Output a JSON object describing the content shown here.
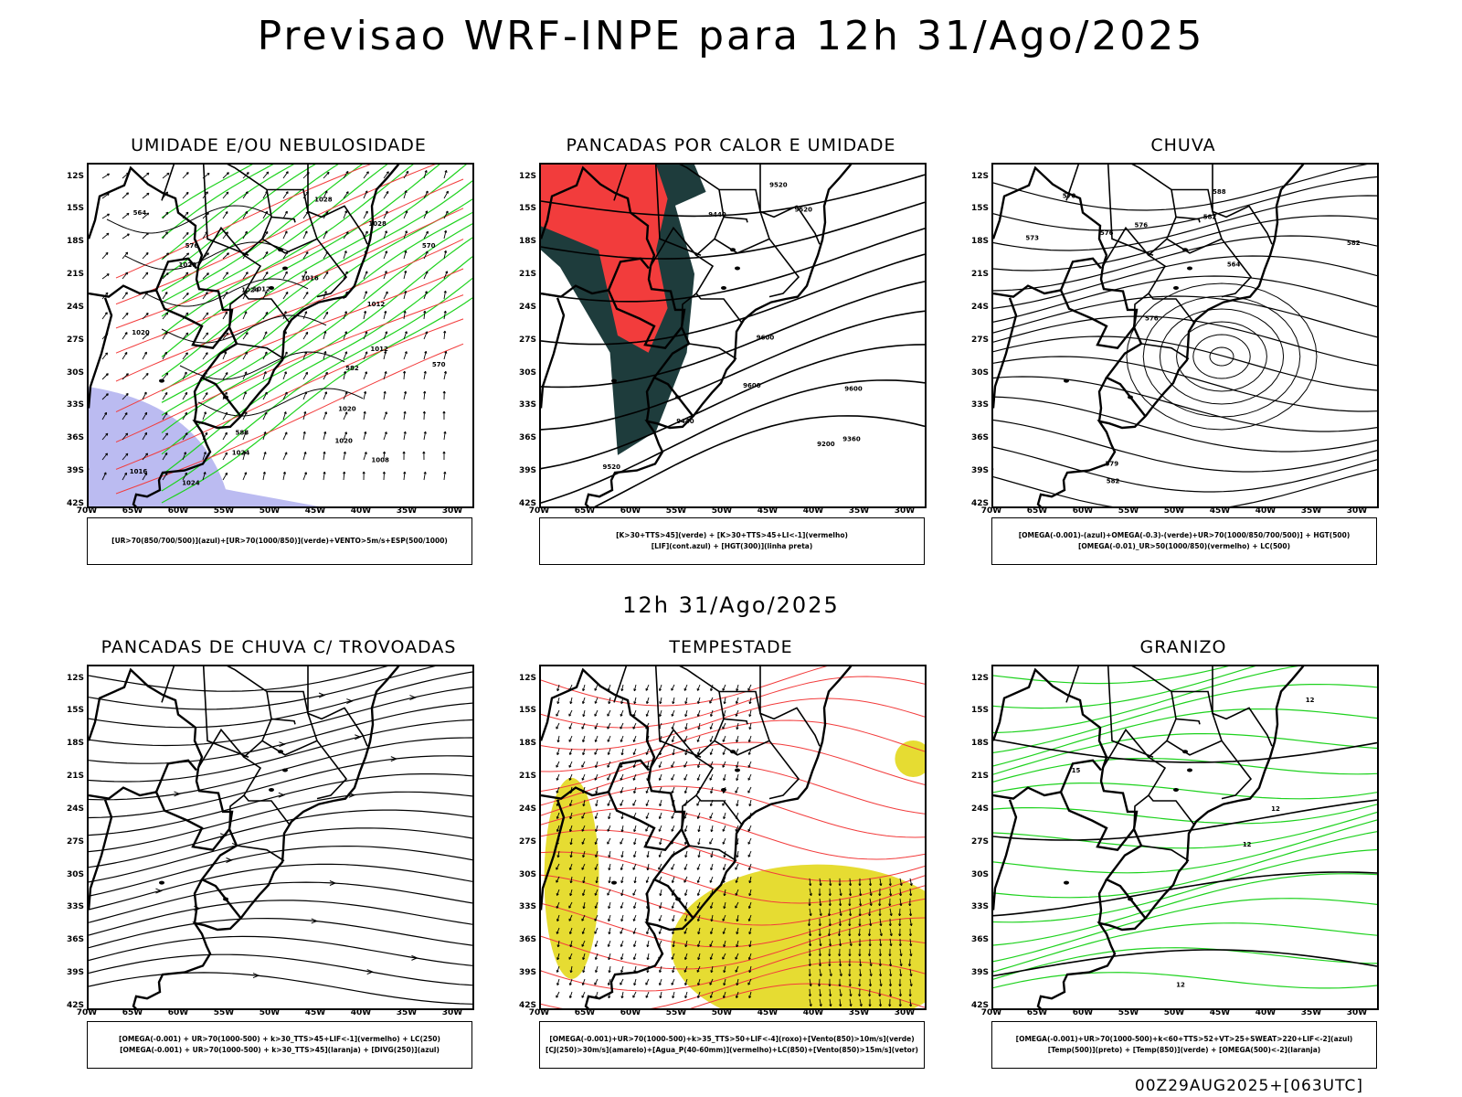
{
  "title": "Previsao WRF-INPE  para 12h 31/Ago/2025",
  "mid_title": "12h 31/Ago/2025",
  "footer": "00Z29AUG2025+[063UTC]",
  "lat_labels": [
    "12S",
    "15S",
    "18S",
    "21S",
    "24S",
    "27S",
    "30S",
    "33S",
    "36S",
    "39S",
    "42S"
  ],
  "lon_labels": [
    "70W",
    "65W",
    "60W",
    "55W",
    "50W",
    "45W",
    "40W",
    "35W",
    "30W"
  ],
  "colors": {
    "red": "#f23c3c",
    "blue": "#2a3cf0",
    "green": "#1ed21e",
    "orange": "#f09028",
    "yellow": "#e6dc32",
    "dark_teal": "#1e3c3c",
    "lavender": "#b4b4f0",
    "purple_blue": "#7878f0"
  },
  "panels": [
    {
      "title": "UMIDADE E/OU NEBULOSIDADE",
      "legend": [
        "[UR>70(850/700/500)](azul)+[UR>70(1000/850)](verde)+VENTO>5m/s+ESP(500/1000)"
      ],
      "contour_labels": [
        "1012",
        "1020",
        "1016",
        "1008",
        "1020",
        "1024",
        "1020",
        "1024",
        "1028",
        "1012",
        "1016",
        "1028",
        "1012",
        "1020",
        "1024",
        "570",
        "576",
        "570",
        "582",
        "588",
        "564"
      ]
    },
    {
      "title": "PANCADAS POR CALOR E UMIDADE",
      "legend": [
        "[K>30+TTS>45](verde) + [K>30+TTS>45+LI<-1](vermelho)",
        "[LIF](cont.azul) + [HGT(300)](linha preta)"
      ],
      "contour_labels": [
        "9520",
        "9600",
        "9600",
        "9600",
        "9440",
        "9520",
        "9360",
        "9520",
        "9200",
        "9440"
      ]
    },
    {
      "title": "CHUVA",
      "legend": [
        "[OMEGA(-0.001)-(azul)+OMEGA(-0.3)-(verde)+UR>70(1000/850/700/500)] + HGT(500)",
        "[OMEGA(-0.01)_UR>50(1000/850)(vermelho) + LC(500)"
      ],
      "contour_labels": [
        "582",
        "588",
        "582",
        "576",
        "579",
        "573",
        "570",
        "576",
        "564",
        "576",
        "582"
      ]
    },
    {
      "title": "PANCADAS DE CHUVA C/ TROVOADAS",
      "legend": [
        "[OMEGA(-0.001) + UR>70(1000-500) + k>30_TTS>45+LIF<-1](vermelho) + LC(250)",
        "[OMEGA(-0.001) + UR>70(1000-500) + k>30_TTS>45](laranja) + [DIVG(250)](azul)"
      ],
      "contour_labels": []
    },
    {
      "title": "TEMPESTADE",
      "legend": [
        "[OMEGA(-0.001)+UR>70(1000-500)+k>35_TTS>50+LIF<-4](roxo)+[Vento(850)>10m/s](verde)",
        "[CJ(250)>30m/s](amarelo)+[Agua_P(40-60mm)](vermelho)+LC(850)+[Vento(850)>15m/s](vetor)"
      ],
      "contour_labels": []
    },
    {
      "title": "GRANIZO",
      "legend": [
        "[OMEGA(-0.001)+UR>70(1000-500)+k<60+TTS>52+VT>25+SWEAT>220+LIF<-2](azul)",
        "[Temp(500)](preto) + [Temp(850)](verde) + [OMEGA(500)<-2](laranja)"
      ],
      "contour_labels": [
        "12",
        "12",
        "12",
        "15",
        "12"
      ]
    }
  ]
}
